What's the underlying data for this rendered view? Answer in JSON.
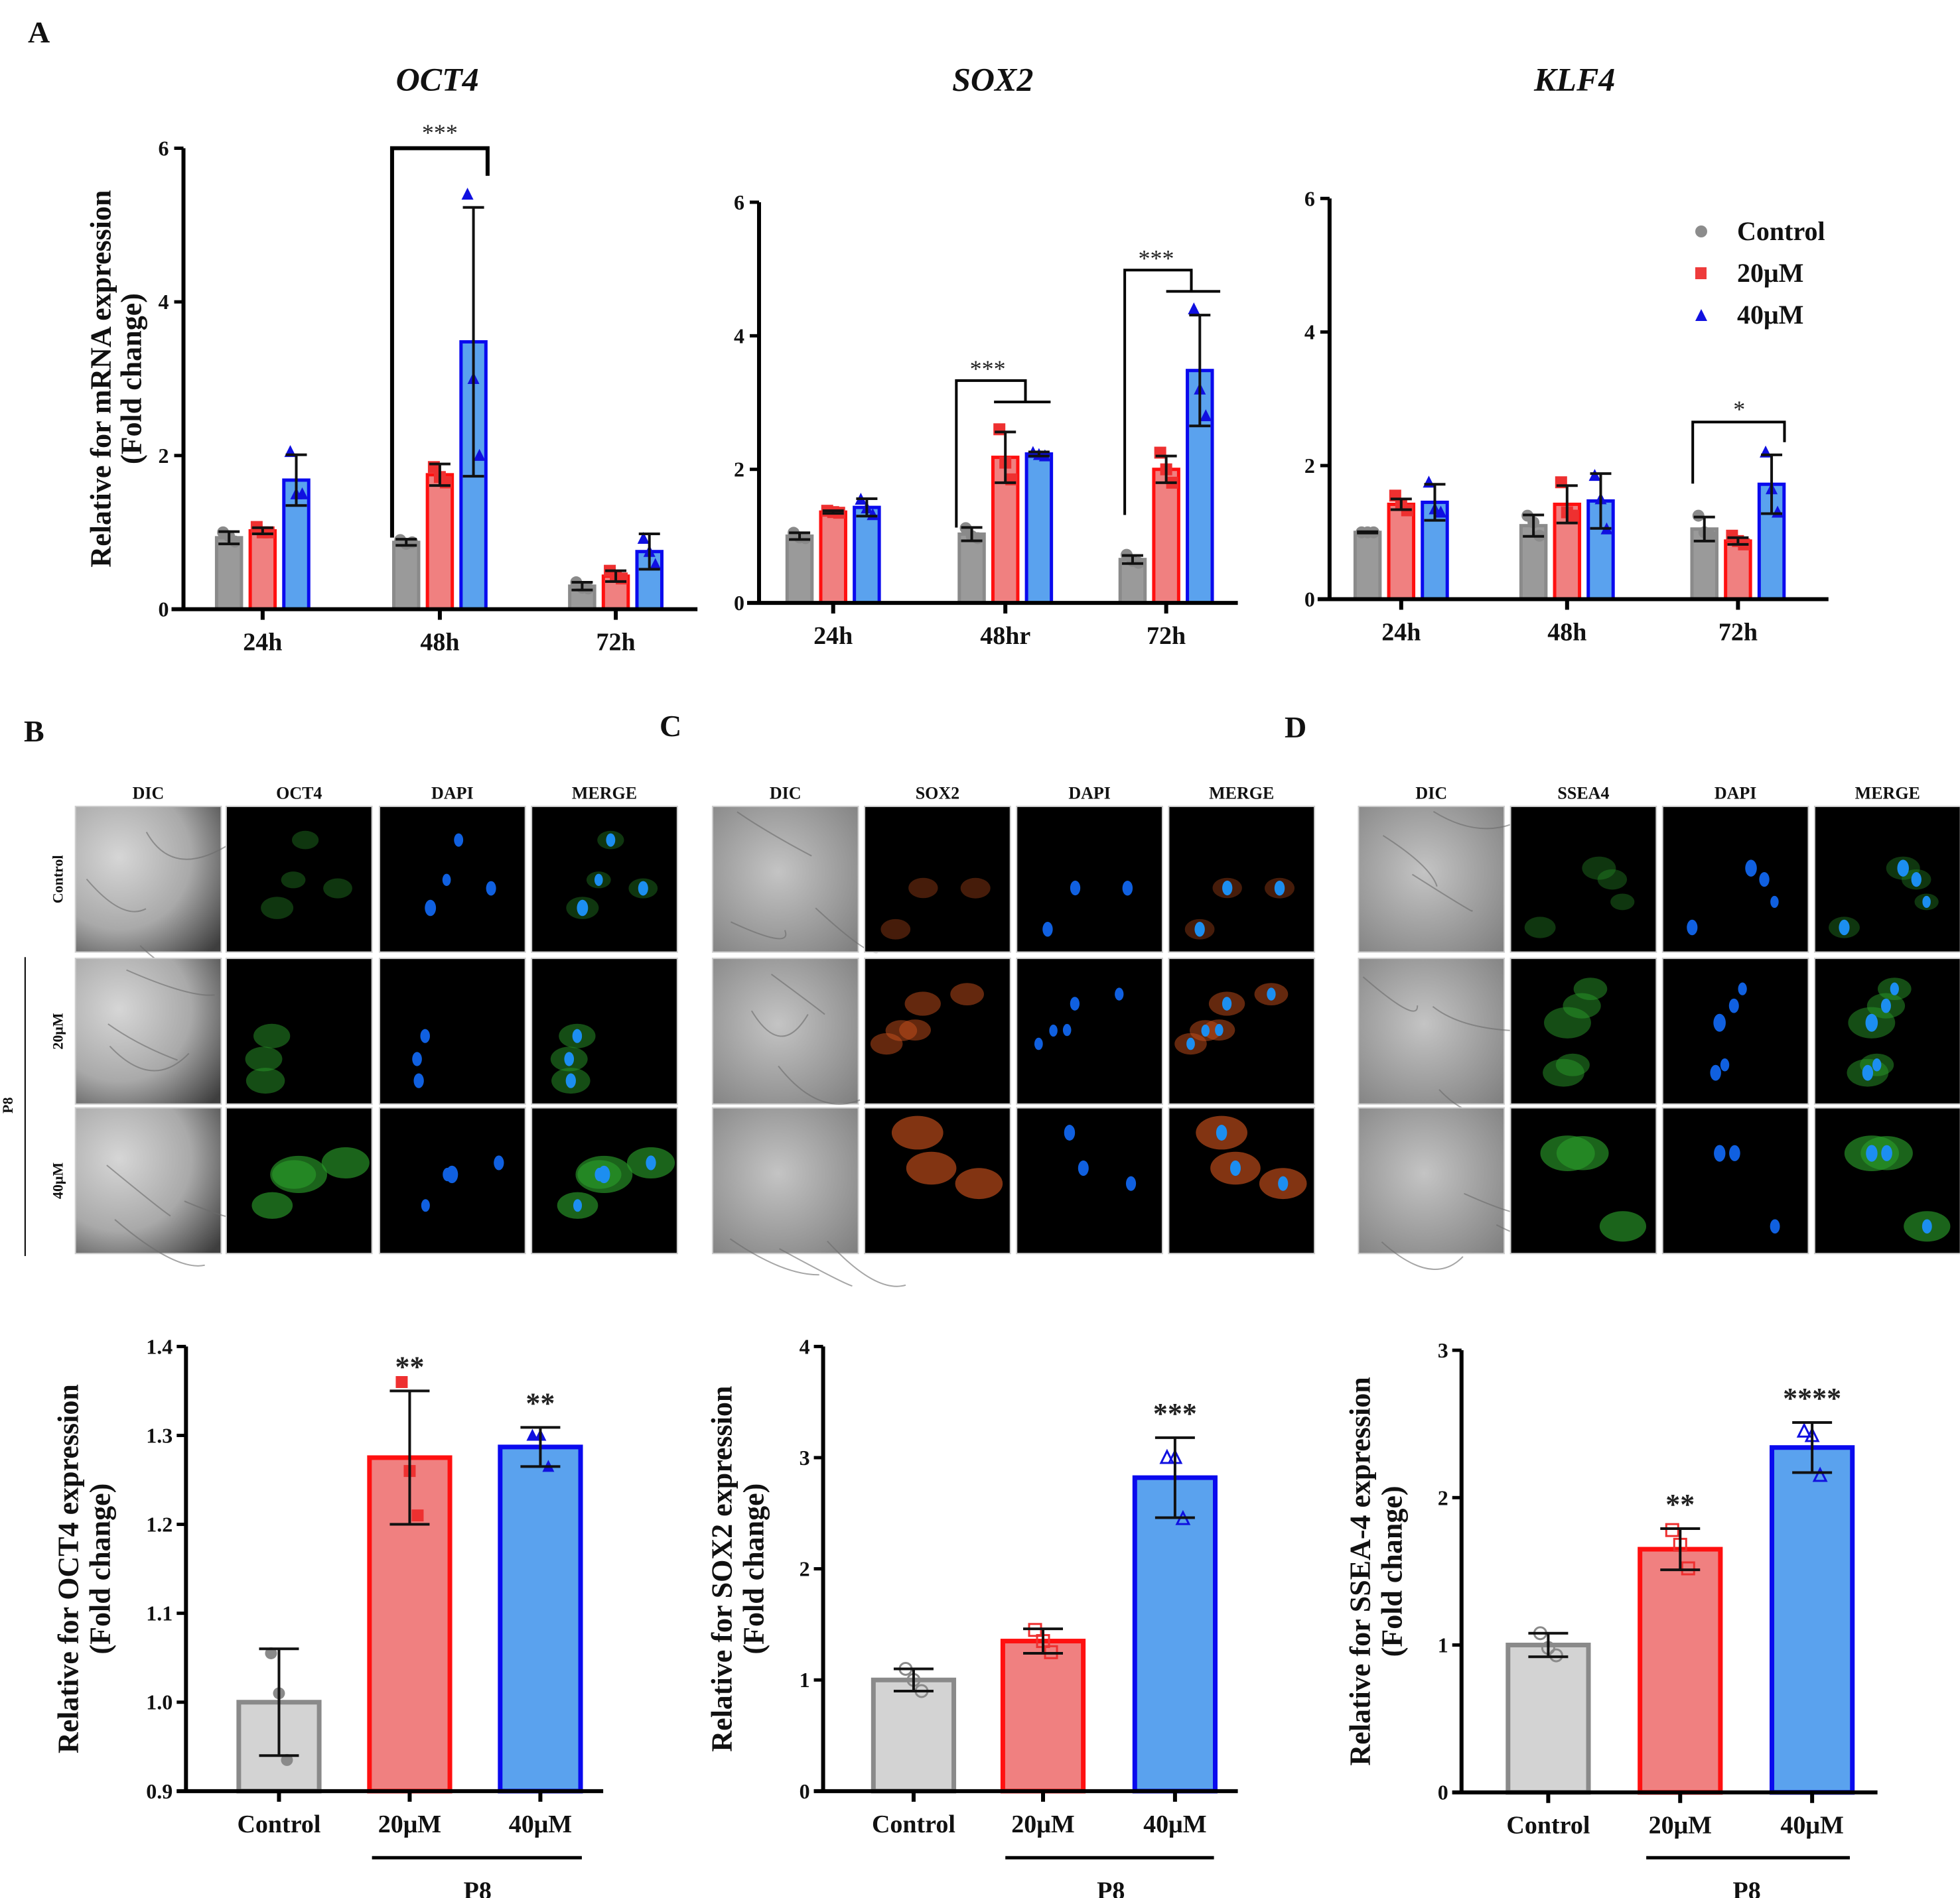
{
  "figure": {
    "panel_labels": [
      "A",
      "B",
      "C",
      "D"
    ]
  },
  "legend": [
    {
      "label": "Control",
      "marker": "circle",
      "color": "#8c8c8c"
    },
    {
      "label": "20μM",
      "marker": "square",
      "color": "#ee3b3b"
    },
    {
      "label": "40μM",
      "marker": "triangle",
      "color": "#1010e0"
    }
  ],
  "colors": {
    "control_fill": "#9a9a9a",
    "control_stroke": "#8a8a8a",
    "control_fill_light": "#d3d3d3",
    "uM20_fill": "#f08080",
    "uM20_stroke": "#ff1010",
    "uM40_fill": "#5aa2ee",
    "uM40_stroke": "#0a0aee"
  },
  "microscopy": [
    {
      "id": "B",
      "columns": [
        "DIC",
        "OCT4",
        "DAPI",
        "MERGE"
      ],
      "rows": [
        "Control",
        "20μM",
        "40μM"
      ],
      "group_label": "P8",
      "marker_color": "green"
    },
    {
      "id": "C",
      "columns": [
        "DIC",
        "SOX2",
        "DAPI",
        "MERGE"
      ],
      "rows": [
        "",
        "",
        ""
      ],
      "marker_color": "orange"
    },
    {
      "id": "D",
      "columns": [
        "DIC",
        "SSEA4",
        "DAPI",
        "MERGE"
      ],
      "rows": [
        "",
        "",
        ""
      ],
      "marker_color": "green"
    }
  ],
  "chart_data": [
    {
      "id": "A-OCT4",
      "type": "bar",
      "title": "OCT4",
      "ylabel": "Relative for mRNA expression\n(Fold change)",
      "xlabel": "",
      "categories": [
        "24h",
        "48h",
        "72h"
      ],
      "ylim": [
        0,
        6
      ],
      "yticks": [
        0,
        2,
        4,
        6
      ],
      "series": [
        {
          "name": "Control",
          "values": [
            0.93,
            0.87,
            0.3
          ],
          "err": [
            0.08,
            0.04,
            0.05
          ],
          "points": [
            [
              1.0,
              0.95,
              0.88
            ],
            [
              0.9,
              0.85,
              0.87
            ],
            [
              0.35,
              0.28,
              0.27
            ]
          ]
        },
        {
          "name": "20μM",
          "values": [
            1.02,
            1.75,
            0.43
          ],
          "err": [
            0.04,
            0.14,
            0.07
          ],
          "points": [
            [
              1.07,
              1.0,
              1.0
            ],
            [
              1.85,
              1.72,
              1.65
            ],
            [
              0.5,
              0.42,
              0.4
            ]
          ]
        },
        {
          "name": "40μM",
          "values": [
            1.68,
            3.48,
            0.75
          ],
          "err": [
            0.33,
            1.75,
            0.23
          ],
          "points": [
            [
              2.05,
              1.5,
              1.5
            ],
            [
              5.4,
              3.0,
              2.0
            ],
            [
              0.92,
              0.75,
              0.58
            ]
          ]
        }
      ],
      "annotations": [
        {
          "text": "***",
          "from": [
            1,
            0
          ],
          "to": [
            1,
            2
          ]
        }
      ]
    },
    {
      "id": "A-SOX2",
      "type": "bar",
      "title": "SOX2",
      "ylabel": "",
      "categories": [
        "24h",
        "48hr",
        "72h"
      ],
      "ylim": [
        0,
        6
      ],
      "yticks": [
        0,
        2,
        4,
        6
      ],
      "series": [
        {
          "name": "Control",
          "values": [
            1.0,
            1.03,
            0.65
          ],
          "err": [
            0.05,
            0.1,
            0.06
          ],
          "points": [
            [
              1.05,
              0.98,
              0.97
            ],
            [
              1.12,
              1.0,
              0.97
            ],
            [
              0.72,
              0.63,
              0.6
            ]
          ]
        },
        {
          "name": "20μM",
          "values": [
            1.36,
            2.18,
            2.0
          ],
          "err": [
            0.02,
            0.38,
            0.2
          ],
          "points": [
            [
              1.38,
              1.36,
              1.35
            ],
            [
              2.6,
              2.1,
              1.85
            ],
            [
              2.25,
              2.0,
              1.8
            ]
          ]
        },
        {
          "name": "40μM",
          "values": [
            1.43,
            2.23,
            3.48
          ],
          "err": [
            0.13,
            0.03,
            0.83
          ],
          "points": [
            [
              1.55,
              1.42,
              1.32
            ],
            [
              2.25,
              2.22,
              2.2
            ],
            [
              4.4,
              3.2,
              2.8
            ]
          ]
        }
      ],
      "annotations": [
        {
          "text": "***",
          "from": [
            1,
            0
          ],
          "to": [
            1,
            [
              1,
              2
            ]
          ]
        },
        {
          "text": "***",
          "from": [
            2,
            0
          ],
          "to": [
            2,
            [
              1,
              2
            ]
          ]
        }
      ]
    },
    {
      "id": "A-KLF4",
      "type": "bar",
      "title": "KLF4",
      "ylabel": "",
      "categories": [
        "24h",
        "48h",
        "72h"
      ],
      "ylim": [
        0,
        6
      ],
      "yticks": [
        0,
        2,
        4,
        6
      ],
      "legend": "top-right",
      "series": [
        {
          "name": "Control",
          "values": [
            1.0,
            1.1,
            1.05
          ],
          "err": [
            0.01,
            0.16,
            0.18
          ],
          "points": [
            [
              1.0,
              1.0,
              1.0
            ],
            [
              1.25,
              1.15,
              0.95
            ],
            [
              1.25,
              1.0,
              0.95
            ]
          ]
        },
        {
          "name": "20μM",
          "values": [
            1.42,
            1.42,
            0.87
          ],
          "err": [
            0.08,
            0.28,
            0.05
          ],
          "points": [
            [
              1.55,
              1.42,
              1.33
            ],
            [
              1.75,
              1.3,
              1.25
            ],
            [
              0.95,
              0.87,
              0.82
            ]
          ]
        },
        {
          "name": "40μM",
          "values": [
            1.45,
            1.47,
            1.72
          ],
          "err": [
            0.27,
            0.41,
            0.44
          ],
          "points": [
            [
              1.75,
              1.35,
              1.3
            ],
            [
              1.85,
              1.5,
              1.05
            ],
            [
              2.2,
              1.65,
              1.3
            ]
          ]
        }
      ],
      "annotations": [
        {
          "text": "*",
          "from": [
            2,
            0
          ],
          "to": [
            2,
            2
          ]
        }
      ]
    },
    {
      "id": "B-OCT4",
      "type": "bar",
      "title": "",
      "ylabel": "Relative for  OCT4 expression\n(Fold change)",
      "categories": [
        "Control",
        "20μM",
        "40μM"
      ],
      "group_label": {
        "text": "P8",
        "spans": [
          "20μM",
          "40μM"
        ]
      },
      "ylim": [
        0.9,
        1.4
      ],
      "yticks": [
        0.9,
        1.0,
        1.1,
        1.2,
        1.3,
        1.4
      ],
      "ytick_labels": [
        "0.9",
        "1.0",
        "1.1",
        "1.2",
        "1.3",
        "1.4"
      ],
      "values": [
        1.0,
        1.275,
        1.287
      ],
      "err": [
        0.06,
        0.075,
        0.022
      ],
      "points": [
        [
          1.055,
          1.01,
          0.935
        ],
        [
          1.36,
          1.26,
          1.21
        ],
        [
          1.3,
          1.3,
          1.265
        ]
      ],
      "significance": [
        "",
        "**",
        "**"
      ]
    },
    {
      "id": "C-SOX2",
      "type": "bar",
      "title": "",
      "ylabel": "Relative for SOX2 expression\n(Fold change)",
      "categories": [
        "Control",
        "20μM",
        "40μM"
      ],
      "group_label": {
        "text": "P8",
        "spans": [
          "20μM",
          "40μM"
        ]
      },
      "ylim": [
        0,
        4
      ],
      "yticks": [
        0,
        1,
        2,
        3,
        4
      ],
      "ytick_labels": [
        "0",
        "1",
        "2",
        "3",
        "4"
      ],
      "values": [
        1.0,
        1.35,
        2.82
      ],
      "err": [
        0.1,
        0.11,
        0.36
      ],
      "points": [
        [
          1.1,
          1.0,
          0.9
        ],
        [
          1.45,
          1.35,
          1.25
        ],
        [
          3.0,
          3.0,
          2.45
        ]
      ],
      "significance": [
        "",
        "",
        "***"
      ]
    },
    {
      "id": "D-SSEA4",
      "type": "bar",
      "title": "",
      "ylabel": "Relative for SSEA-4 expression\n(Fold change)",
      "categories": [
        "Control",
        "20μM",
        "40μM"
      ],
      "group_label": {
        "text": "P8",
        "spans": [
          "20μM",
          "40μM"
        ]
      },
      "ylim": [
        0,
        3
      ],
      "yticks": [
        0,
        1,
        2,
        3
      ],
      "ytick_labels": [
        "0",
        "1",
        "2",
        "3"
      ],
      "values": [
        1.0,
        1.65,
        2.34
      ],
      "err": [
        0.08,
        0.14,
        0.17
      ],
      "points": [
        [
          1.08,
          0.98,
          0.93
        ],
        [
          1.78,
          1.68,
          1.52
        ],
        [
          2.45,
          2.42,
          2.15
        ]
      ],
      "significance": [
        "",
        "**",
        "****"
      ]
    }
  ]
}
